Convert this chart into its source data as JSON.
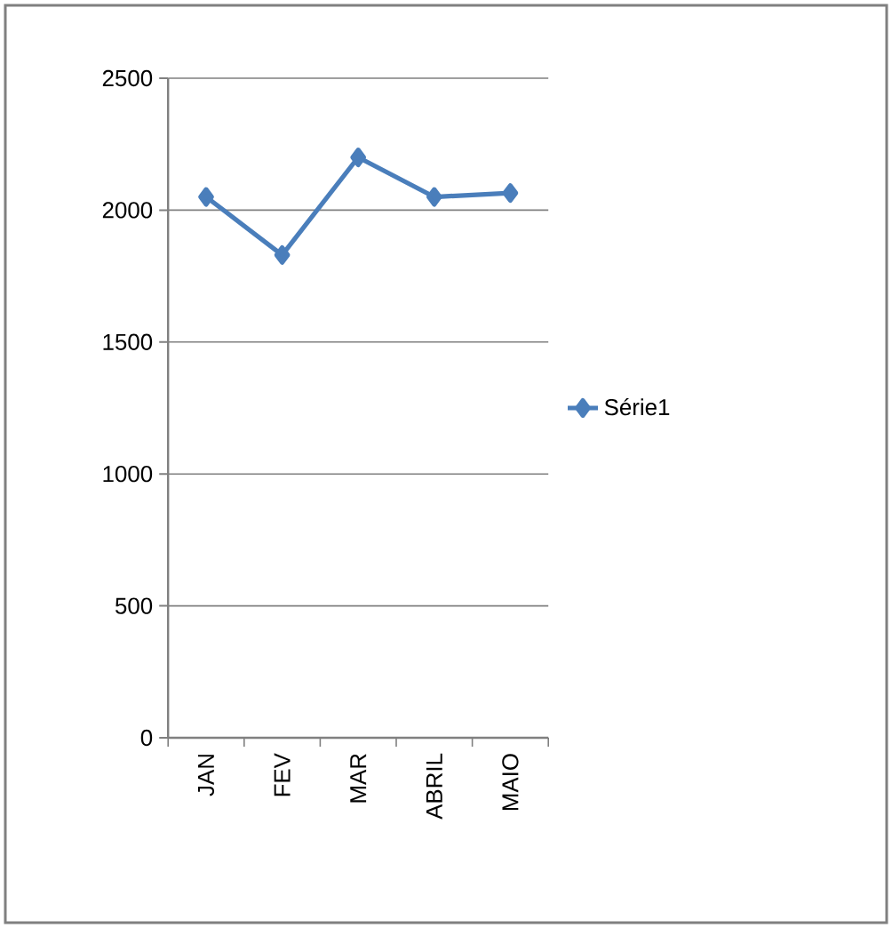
{
  "chart_data": {
    "type": "line",
    "categories": [
      "JAN",
      "FEV",
      "MAR",
      "ABRIL",
      "MAIO"
    ],
    "series": [
      {
        "name": "Série1",
        "color": "#4a7ebb",
        "values": [
          2050,
          1830,
          2200,
          2050,
          2065
        ]
      }
    ],
    "ylim": [
      0,
      2500
    ],
    "yticks": [
      0,
      500,
      1000,
      1500,
      2000,
      2500
    ],
    "grid": "y",
    "legend": "right",
    "marker": "diamond",
    "line_style": "solid"
  }
}
